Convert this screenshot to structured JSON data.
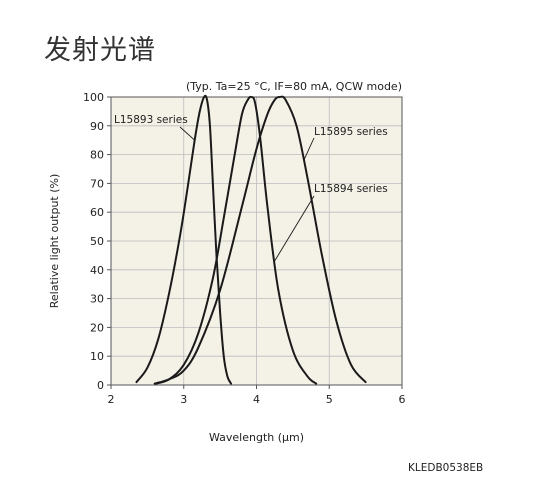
{
  "page": {
    "title": "发射光谱",
    "figure_code": "KLEDB0538EB"
  },
  "colors": {
    "plot_background": "#f4f1e6",
    "grid": "#bdbdbd",
    "curve": "#1a1a1a",
    "text": "#222222"
  },
  "chart_data": {
    "type": "line",
    "note": "(Typ. Ta=25 °C, IF=80 mA, QCW mode)",
    "xlabel": "Wavelength (μm)",
    "ylabel": "Relative light output (%)",
    "xlim": [
      2,
      6
    ],
    "ylim": [
      0,
      100
    ],
    "xticks": [
      2,
      3,
      4,
      5,
      6
    ],
    "yticks": [
      0,
      10,
      20,
      30,
      40,
      50,
      60,
      70,
      80,
      90,
      100
    ],
    "grid": true,
    "series": [
      {
        "name": "L15893 series",
        "x": [
          2.35,
          2.5,
          2.65,
          2.8,
          2.95,
          3.05,
          3.15,
          3.22,
          3.28,
          3.32,
          3.36,
          3.4,
          3.45,
          3.5,
          3.55,
          3.6,
          3.65
        ],
        "y": [
          1,
          6,
          16,
          32,
          52,
          68,
          85,
          95,
          100,
          99,
          90,
          70,
          45,
          25,
          10,
          3,
          0.5
        ]
      },
      {
        "name": "L15894 series",
        "x": [
          2.62,
          2.8,
          3.0,
          3.2,
          3.4,
          3.55,
          3.7,
          3.8,
          3.88,
          3.93,
          3.98,
          4.05,
          4.15,
          4.3,
          4.5,
          4.7,
          4.82
        ],
        "y": [
          0.5,
          2,
          7,
          18,
          37,
          58,
          80,
          94,
          99,
          100,
          98,
          86,
          62,
          33,
          12,
          3,
          0.5
        ]
      },
      {
        "name": "L15895 series",
        "x": [
          2.6,
          2.8,
          3.0,
          3.2,
          3.5,
          3.8,
          4.0,
          4.15,
          4.25,
          4.32,
          4.4,
          4.55,
          4.7,
          4.9,
          5.1,
          5.3,
          5.5
        ],
        "y": [
          0.5,
          2,
          5,
          13,
          33,
          62,
          82,
          94,
          99,
          100,
          99,
          90,
          72,
          45,
          22,
          7,
          1
        ]
      }
    ],
    "annotations": [
      {
        "series": "L15893 series",
        "label": "L15893 series",
        "label_position": "upper-left"
      },
      {
        "series": "L15895 series",
        "label": "L15895 series",
        "label_position": "upper-right"
      },
      {
        "series": "L15894 series",
        "label": "L15894 series",
        "label_position": "right"
      }
    ]
  }
}
